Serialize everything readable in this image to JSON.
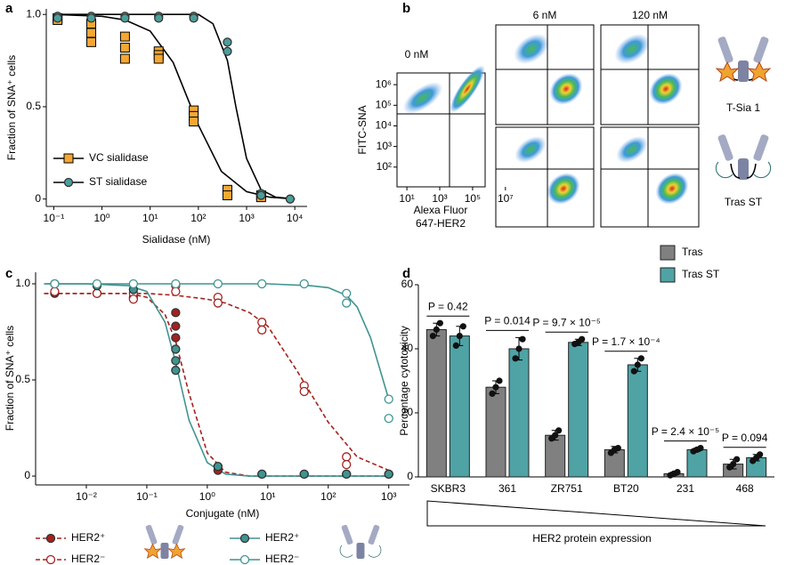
{
  "chart_data": [
    {
      "type": "scatter",
      "panel_label": "a",
      "x_label": "Sialidase (nM)",
      "y_label": "Fraction of SNA⁺ cells",
      "log_x": true,
      "xlim": [
        0.07,
        18000
      ],
      "ylim": [
        -0.04,
        1.03
      ],
      "xticks": [
        {
          "value": 0.1,
          "label": "10⁻¹"
        },
        {
          "value": 1,
          "label": "10⁰"
        },
        {
          "value": 10,
          "label": "10¹"
        },
        {
          "value": 100,
          "label": "10²"
        },
        {
          "value": 1000,
          "label": "10³"
        },
        {
          "value": 10000,
          "label": "10⁴"
        }
      ],
      "yticks": [
        0,
        0.5,
        {
          "value": 1,
          "label": "1.0"
        }
      ],
      "series": [
        {
          "name": "VC sialidase",
          "color": "#f5a733",
          "line_color": "#000000",
          "marker": "square",
          "filled": true,
          "dashed": false,
          "x": [
            0.12,
            0.12,
            0.6,
            0.6,
            0.6,
            3,
            3,
            3,
            15,
            15,
            15,
            80,
            80,
            80,
            400,
            400,
            2000,
            2000
          ],
          "values": [
            0.98,
            0.97,
            0.95,
            0.9,
            0.85,
            0.88,
            0.82,
            0.76,
            0.8,
            0.78,
            0.76,
            0.48,
            0.45,
            0.42,
            0.05,
            0.02,
            0.02,
            0.01
          ],
          "fit_x": [
            0.1,
            1,
            3,
            10,
            30,
            100,
            300,
            1000,
            3000,
            10000
          ],
          "fit_values": [
            1.0,
            0.99,
            0.97,
            0.91,
            0.74,
            0.4,
            0.15,
            0.04,
            0.01,
            0.0
          ]
        },
        {
          "name": "ST sialidase",
          "color": "#4b9e9b",
          "line_color": "#000000",
          "marker": "circle",
          "filled": true,
          "dashed": false,
          "x": [
            0.12,
            0.12,
            0.6,
            0.6,
            3,
            3,
            15,
            15,
            80,
            80,
            400,
            400,
            2000,
            2000,
            8000
          ],
          "values": [
            0.99,
            0.98,
            0.99,
            0.98,
            0.99,
            0.98,
            0.99,
            0.98,
            0.99,
            0.98,
            0.85,
            0.8,
            0.03,
            0.02,
            0.0
          ],
          "fit_x": [
            0.1,
            1,
            10,
            100,
            200,
            400,
            600,
            1000,
            2000,
            4000,
            10000
          ],
          "fit_values": [
            1.0,
            1.0,
            1.0,
            1.0,
            0.95,
            0.75,
            0.5,
            0.22,
            0.05,
            0.01,
            0.0
          ]
        }
      ]
    },
    {
      "type": "density",
      "panel_label": "b",
      "x_label": [
        "Alexa Fluor",
        "647-HER2"
      ],
      "y_label": "FITC-SNA",
      "panel_titles": [
        "0 nM",
        "6 nM",
        "120 nM"
      ],
      "row_labels": [
        "T-Sia 1",
        "Tras ST"
      ],
      "xlim": [
        2.5,
        580000
      ],
      "ylim": [
        11,
        3700000
      ],
      "xticks": [
        {
          "value": 10,
          "label": "10¹"
        },
        {
          "value": 1000,
          "label": "10³"
        },
        {
          "value": 100000,
          "label": "10⁵"
        },
        {
          "value": 10000000,
          "label": "10⁷"
        }
      ],
      "yticks": [
        {
          "value": 100,
          "label": "10²"
        },
        {
          "value": 1000,
          "label": "10³"
        },
        {
          "value": 10000,
          "label": "10⁴"
        },
        {
          "value": 100000,
          "label": "10⁵"
        },
        {
          "value": 1000000,
          "label": "10⁶"
        }
      ]
    },
    {
      "type": "scatter",
      "panel_label": "c",
      "x_label": "Conjugate (nM)",
      "y_label": "Fraction of SNA⁺ cells",
      "log_x": true,
      "xlim": [
        0.00145,
        2200
      ],
      "ylim": [
        -0.046,
        1.06
      ],
      "xticks": [
        {
          "value": 0.01,
          "label": "10⁻²"
        },
        {
          "value": 0.1,
          "label": "10⁻¹"
        },
        {
          "value": 1,
          "label": "10⁰"
        },
        {
          "value": 10,
          "label": "10¹"
        },
        {
          "value": 100,
          "label": "10²"
        },
        {
          "value": 1000,
          "label": "10³"
        }
      ],
      "yticks": [
        0,
        0.5,
        {
          "value": 1,
          "label": "1.0"
        }
      ],
      "series": [
        {
          "name": "HER2⁺",
          "color": "#a3221f",
          "line_color": "#a3221f",
          "marker": "circle",
          "filled": true,
          "dashed": true,
          "x": [
            0.003,
            0.015,
            0.06,
            0.3,
            0.3,
            0.3,
            1.5,
            1.5,
            8,
            40,
            200,
            1000
          ],
          "values": [
            0.95,
            0.95,
            0.93,
            0.85,
            0.78,
            0.72,
            0.05,
            0.03,
            0.01,
            0.01,
            0.01,
            0.01
          ],
          "fit_x": [
            0.002,
            0.01,
            0.05,
            0.1,
            0.2,
            0.3,
            0.5,
            1,
            2,
            5,
            10,
            100,
            1000
          ],
          "fit_values": [
            0.95,
            0.95,
            0.95,
            0.93,
            0.84,
            0.7,
            0.43,
            0.12,
            0.02,
            0.0,
            0.0,
            0.0,
            0.0
          ]
        },
        {
          "name": "HER2⁻",
          "color": "#a3221f",
          "line_color": "#a3221f",
          "marker": "circle",
          "filled": false,
          "dashed": true,
          "x": [
            0.003,
            0.015,
            0.06,
            0.06,
            0.3,
            0.3,
            1.5,
            1.5,
            8,
            8,
            40,
            40,
            200,
            200,
            1000
          ],
          "values": [
            0.96,
            0.95,
            0.95,
            0.92,
            0.99,
            0.96,
            0.93,
            0.9,
            0.8,
            0.76,
            0.47,
            0.44,
            0.1,
            0.06,
            0.01
          ],
          "fit_x": [
            0.002,
            0.01,
            0.05,
            0.1,
            0.3,
            1,
            2,
            5,
            10,
            30,
            100,
            300,
            1000
          ],
          "fit_values": [
            0.95,
            0.95,
            0.95,
            0.95,
            0.94,
            0.92,
            0.9,
            0.85,
            0.78,
            0.55,
            0.28,
            0.1,
            0.03
          ]
        },
        {
          "name": "HER2⁺",
          "color": "#3f9490",
          "line_color": "#3f9490",
          "marker": "circle",
          "filled": true,
          "dashed": false,
          "x": [
            0.003,
            0.015,
            0.06,
            0.3,
            0.3,
            0.3,
            1.5,
            8,
            40,
            200,
            1000
          ],
          "values": [
            1.0,
            0.99,
            0.97,
            0.66,
            0.6,
            0.55,
            0.05,
            0.01,
            0.01,
            0.01,
            0.01
          ],
          "fit_x": [
            0.002,
            0.01,
            0.05,
            0.1,
            0.2,
            0.3,
            0.5,
            1,
            2,
            5,
            10,
            100,
            1000
          ],
          "fit_values": [
            1.0,
            1.0,
            0.99,
            0.96,
            0.8,
            0.59,
            0.29,
            0.07,
            0.01,
            0.0,
            0.0,
            0.0,
            0.0
          ]
        },
        {
          "name": "HER2⁻",
          "color": "#3f9490",
          "line_color": "#3f9490",
          "marker": "circle",
          "filled": false,
          "dashed": false,
          "x": [
            0.003,
            0.015,
            0.06,
            0.3,
            1.5,
            8,
            40,
            200,
            200,
            1000,
            1000
          ],
          "values": [
            1.0,
            1.0,
            1.0,
            1.0,
            1.0,
            1.0,
            1.0,
            0.95,
            0.9,
            0.4,
            0.3
          ],
          "fit_x": [
            0.002,
            0.1,
            1,
            10,
            50,
            100,
            200,
            300,
            500,
            1000
          ],
          "fit_values": [
            1.0,
            1.0,
            1.0,
            1.0,
            0.99,
            0.98,
            0.94,
            0.88,
            0.72,
            0.4
          ]
        }
      ]
    },
    {
      "type": "bar",
      "panel_label": "d",
      "y_label": "Percentage cytotoxicity",
      "x_note": "HER2 protein expression",
      "categories": [
        "SKBR3",
        "361",
        "ZR751",
        "BT20",
        "231",
        "468"
      ],
      "ylim": [
        0,
        60
      ],
      "yticks": [
        0,
        20,
        40,
        60
      ],
      "series": [
        {
          "name": "Tras",
          "color": "#808080",
          "values": [
            46,
            28,
            13,
            8.5,
            1,
            4
          ],
          "errors": [
            2,
            2,
            1.5,
            1,
            0.5,
            1.5
          ],
          "points": [
            [
              44,
              46,
              48
            ],
            [
              26,
              28,
              30
            ],
            [
              12,
              13,
              14.5
            ],
            [
              7.5,
              8.5,
              9
            ],
            [
              0.5,
              1,
              1.5
            ],
            [
              3,
              4,
              5.5
            ]
          ]
        },
        {
          "name": "Tras ST",
          "color": "#4fa3a5",
          "values": [
            44,
            40,
            42,
            35,
            8.5,
            6
          ],
          "errors": [
            3,
            3.5,
            1,
            2,
            0.5,
            1
          ],
          "points": [
            [
              41,
              44,
              47
            ],
            [
              37,
              40,
              43
            ],
            [
              41.5,
              42,
              43
            ],
            [
              33,
              35,
              37
            ],
            [
              8,
              8.5,
              9
            ],
            [
              5,
              6,
              7
            ]
          ]
        }
      ],
      "annotations": [
        "P = 0.42",
        "P = 0.014",
        "P = 9.7 × 10⁻⁵",
        "P = 1.7 × 10⁻⁴",
        "P = 2.4 × 10⁻⁵",
        "P = 0.094"
      ]
    }
  ]
}
